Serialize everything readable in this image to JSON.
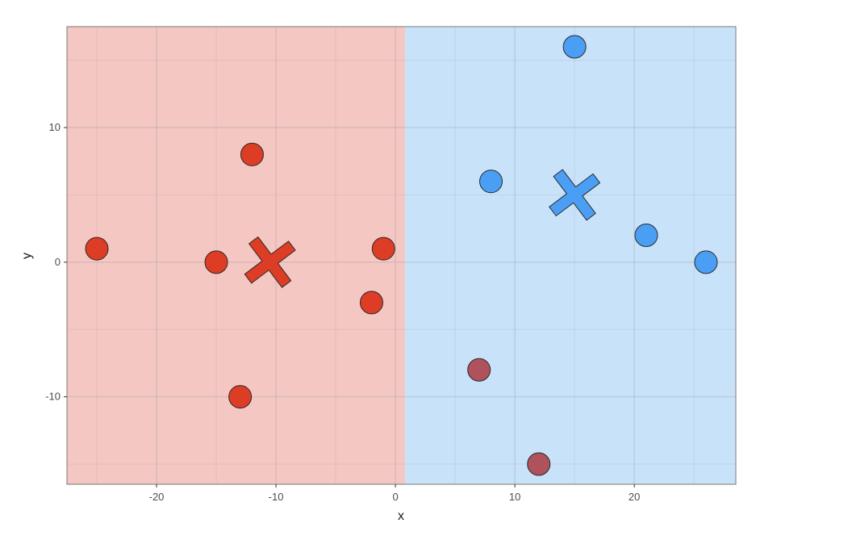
{
  "chart_data": {
    "type": "scatter",
    "title": "",
    "xlabel": "x",
    "ylabel": "y",
    "xlim": [
      -27.5,
      28.5
    ],
    "ylim": [
      -16.5,
      17.5
    ],
    "x_ticks": [
      -20,
      -10,
      0,
      10,
      20
    ],
    "y_ticks": [
      -10,
      0,
      10
    ],
    "x_tick_labels": [
      "-20",
      "-10",
      "0",
      "10",
      "20"
    ],
    "y_tick_labels": [
      "-10",
      "0",
      "10"
    ],
    "grid": true,
    "legend": "none",
    "decision_boundary_x": 0.8,
    "regions": [
      {
        "side": "left",
        "color": "#F4C7C3"
      },
      {
        "side": "right",
        "color": "#C8E2FA"
      }
    ],
    "series": [
      {
        "color": "#DC3D24",
        "points": [
          {
            "x": -25,
            "y": 1
          },
          {
            "x": -15,
            "y": 0
          },
          {
            "x": -12,
            "y": 8
          },
          {
            "x": -13,
            "y": -10
          },
          {
            "x": -1,
            "y": 1
          },
          {
            "x": -2,
            "y": -3
          }
        ]
      },
      {
        "color": "#4A9FF5",
        "points": [
          {
            "x": 15,
            "y": 16
          },
          {
            "x": 8,
            "y": 6
          },
          {
            "x": 21,
            "y": 2
          },
          {
            "x": 26,
            "y": 0
          }
        ]
      },
      {
        "color": "#B0525C",
        "points": [
          {
            "x": 7,
            "y": -8
          },
          {
            "x": 12,
            "y": -15
          }
        ]
      }
    ],
    "centroids": [
      {
        "x": -10.5,
        "y": 0,
        "color": "#DC3D24"
      },
      {
        "x": 15,
        "y": 5,
        "color": "#4A9FF5"
      }
    ]
  }
}
